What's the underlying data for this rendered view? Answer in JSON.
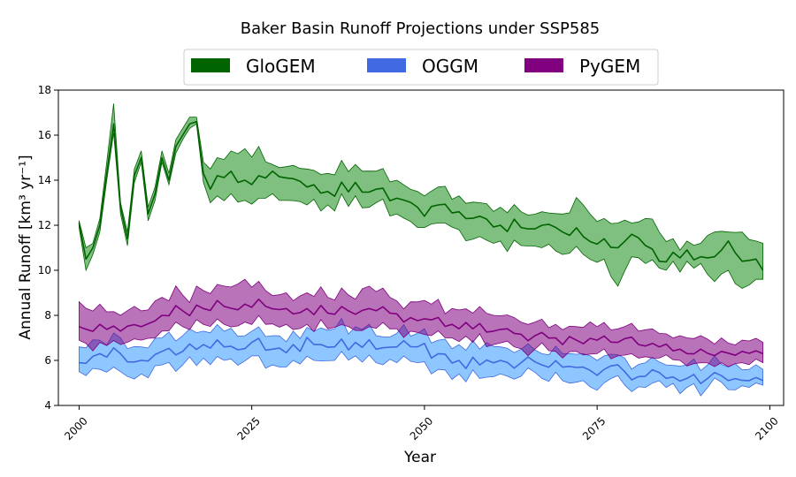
{
  "chart_data": {
    "type": "area",
    "title": "Baker Basin Runoff Projections under SSP585",
    "xlabel": "Year",
    "ylabel": "Annual Runoff [km³ yr⁻¹]",
    "xlim": [
      2000,
      2099
    ],
    "ylim": [
      4,
      18
    ],
    "xticks": [
      2000,
      2025,
      2050,
      2075,
      2100
    ],
    "yticks": [
      4,
      6,
      8,
      10,
      12,
      14,
      16,
      18
    ],
    "legend_position": "top-center",
    "grid": false,
    "anchors": {
      "GloGEM": {
        "years": [
          2000,
          2001,
          2002,
          2003,
          2004,
          2005,
          2006,
          2007,
          2008,
          2009,
          2010,
          2011,
          2012,
          2013,
          2014,
          2015,
          2016,
          2017,
          2018,
          2019,
          2020,
          2022,
          2024,
          2026,
          2028,
          2030,
          2033,
          2036,
          2040,
          2043,
          2046,
          2049,
          2050,
          2052,
          2055,
          2058,
          2061,
          2064,
          2067,
          2070,
          2073,
          2076,
          2078,
          2080,
          2082,
          2084,
          2086,
          2088,
          2090,
          2092,
          2094,
          2096,
          2098,
          2099
        ],
        "mean": [
          12.1,
          10.5,
          11.0,
          12.0,
          14.3,
          16.5,
          12.8,
          11.4,
          14.2,
          15.0,
          12.5,
          13.4,
          15.0,
          14.0,
          15.5,
          16.0,
          16.5,
          16.6,
          14.3,
          13.6,
          14.2,
          14.4,
          14.0,
          14.2,
          14.4,
          14.1,
          13.7,
          13.5,
          13.9,
          13.6,
          13.2,
          12.8,
          12.4,
          12.9,
          12.6,
          12.4,
          12.0,
          11.9,
          12.0,
          11.7,
          11.5,
          11.4,
          11.0,
          11.6,
          11.1,
          10.4,
          10.8,
          10.9,
          10.6,
          10.6,
          11.3,
          10.4,
          10.5,
          10.0
        ],
        "lower": [
          11.9,
          10.0,
          10.7,
          11.7,
          14.0,
          16.1,
          12.5,
          11.1,
          13.9,
          14.8,
          12.2,
          13.1,
          14.8,
          13.8,
          15.2,
          15.8,
          16.3,
          16.5,
          13.9,
          13.0,
          13.3,
          13.4,
          13.1,
          13.2,
          13.4,
          13.1,
          12.9,
          12.9,
          13.3,
          13.0,
          12.5,
          11.9,
          11.9,
          12.1,
          11.8,
          11.5,
          11.3,
          11.1,
          11.0,
          10.7,
          10.7,
          10.5,
          9.3,
          10.6,
          10.3,
          10.1,
          10.4,
          10.4,
          10.3,
          9.5,
          10.0,
          9.2,
          9.6,
          9.6
        ],
        "upper": [
          12.2,
          11.0,
          11.2,
          12.3,
          14.8,
          17.4,
          13.0,
          11.7,
          14.5,
          15.3,
          12.8,
          13.7,
          15.3,
          14.3,
          15.8,
          16.3,
          16.8,
          16.8,
          14.8,
          14.5,
          15.0,
          15.3,
          15.4,
          15.5,
          14.7,
          14.6,
          14.5,
          14.3,
          14.7,
          14.4,
          14.0,
          13.5,
          13.3,
          13.7,
          13.3,
          13.0,
          12.8,
          12.6,
          12.6,
          12.5,
          12.9,
          12.3,
          12.1,
          12.1,
          12.3,
          11.7,
          11.4,
          11.3,
          11.2,
          11.7,
          11.7,
          11.7,
          11.3,
          11.2
        ]
      },
      "OGGM": {
        "years": [
          2000,
          2003,
          2006,
          2009,
          2012,
          2015,
          2018,
          2021,
          2025,
          2028,
          2031,
          2034,
          2037,
          2040,
          2043,
          2046,
          2049,
          2052,
          2055,
          2058,
          2061,
          2064,
          2067,
          2070,
          2073,
          2076,
          2079,
          2082,
          2085,
          2088,
          2091,
          2094,
          2097,
          2099
        ],
        "mean": [
          5.9,
          6.3,
          6.3,
          6.0,
          6.4,
          6.4,
          6.7,
          6.6,
          6.8,
          6.5,
          6.7,
          6.7,
          6.6,
          6.8,
          6.5,
          6.6,
          6.6,
          6.3,
          6.0,
          5.8,
          6.0,
          5.9,
          5.8,
          5.7,
          5.7,
          5.6,
          5.5,
          5.3,
          5.2,
          5.2,
          5.2,
          5.1,
          5.1,
          5.1
        ],
        "lower": [
          5.5,
          5.6,
          5.5,
          5.4,
          5.8,
          5.8,
          6.1,
          6.0,
          6.2,
          5.8,
          6.0,
          6.0,
          6.0,
          6.2,
          5.9,
          5.9,
          5.9,
          5.6,
          5.4,
          5.2,
          5.4,
          5.3,
          5.2,
          5.1,
          5.1,
          5.0,
          4.9,
          4.8,
          4.8,
          4.8,
          4.8,
          4.7,
          4.8,
          4.9
        ],
        "upper": [
          6.6,
          6.9,
          7.0,
          6.6,
          7.0,
          7.1,
          7.3,
          7.3,
          7.3,
          7.1,
          7.3,
          7.3,
          7.4,
          7.5,
          7.1,
          7.2,
          7.2,
          6.9,
          6.7,
          6.5,
          6.6,
          6.5,
          6.3,
          6.3,
          6.3,
          6.2,
          6.1,
          5.9,
          5.8,
          5.8,
          5.8,
          5.7,
          5.6,
          5.6
        ]
      },
      "PyGEM": {
        "years": [
          2000,
          2003,
          2006,
          2009,
          2012,
          2015,
          2018,
          2021,
          2024,
          2027,
          2030,
          2033,
          2036,
          2039,
          2042,
          2045,
          2048,
          2051,
          2054,
          2057,
          2060,
          2063,
          2066,
          2069,
          2072,
          2075,
          2078,
          2081,
          2084,
          2087,
          2090,
          2093,
          2096,
          2099
        ],
        "mean": [
          7.5,
          7.6,
          7.3,
          7.5,
          8.0,
          8.2,
          8.3,
          8.4,
          8.5,
          8.4,
          8.3,
          8.3,
          8.1,
          8.2,
          8.3,
          8.1,
          7.9,
          7.8,
          7.6,
          7.4,
          7.3,
          7.2,
          7.1,
          7.0,
          6.9,
          6.9,
          6.8,
          6.7,
          6.6,
          6.5,
          6.5,
          6.4,
          6.4,
          6.3
        ],
        "lower": [
          6.9,
          6.8,
          6.7,
          6.9,
          7.3,
          7.5,
          7.6,
          7.6,
          7.7,
          7.6,
          7.6,
          7.6,
          7.4,
          7.5,
          7.5,
          7.4,
          7.3,
          7.1,
          7.0,
          6.8,
          6.7,
          6.6,
          6.5,
          6.4,
          6.4,
          6.3,
          6.2,
          6.1,
          6.1,
          6.0,
          5.9,
          5.9,
          5.9,
          5.9
        ],
        "upper": [
          8.6,
          8.5,
          8.0,
          8.2,
          8.8,
          8.9,
          9.1,
          9.3,
          9.6,
          9.1,
          9.0,
          9.0,
          8.8,
          8.9,
          9.3,
          8.8,
          8.6,
          8.5,
          8.3,
          8.1,
          8.0,
          7.9,
          7.7,
          7.6,
          7.5,
          7.5,
          7.4,
          7.3,
          7.2,
          7.1,
          7.1,
          7.0,
          6.9,
          6.8
        ]
      }
    },
    "series": [
      {
        "name": "GloGEM",
        "line_color": "#006400",
        "fill_color": "#008000",
        "fill_opacity": 0.5,
        "edge_color": "#006400",
        "noise_seed": 11,
        "noise_amp": 0.35
      },
      {
        "name": "OGGM",
        "line_color": "#4169E1",
        "fill_color": "#1E90FF",
        "fill_opacity": 0.5,
        "edge_color": "#4169E1",
        "noise_seed": 23,
        "noise_amp": 0.32
      },
      {
        "name": "PyGEM",
        "line_color": "#800080",
        "fill_color": "#800080",
        "fill_opacity": 0.55,
        "edge_color": "#800080",
        "noise_seed": 37,
        "noise_amp": 0.3
      }
    ]
  }
}
